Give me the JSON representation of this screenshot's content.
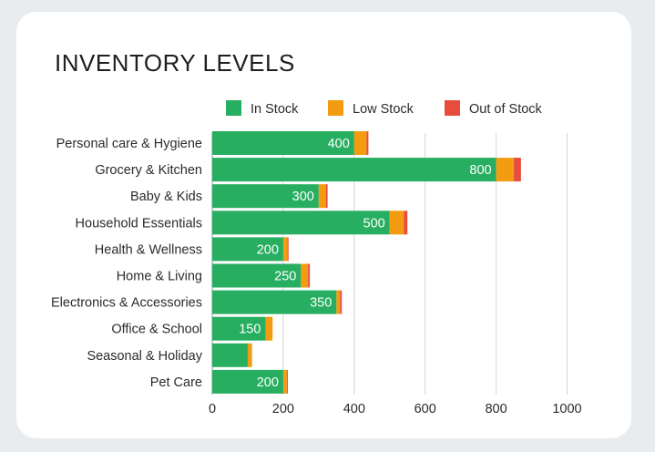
{
  "chart_data": {
    "type": "bar",
    "orientation": "horizontal",
    "stacked": true,
    "title": "INVENTORY LEVELS",
    "categories": [
      "Personal care & Hygiene",
      "Grocery & Kitchen",
      "Baby & Kids",
      "Household Essentials",
      "Health & Wellness",
      "Home & Living",
      "Electronics & Accessories",
      "Office & School",
      "Seasonal & Holiday",
      "Pet Care"
    ],
    "series": [
      {
        "name": "In Stock",
        "color": "#27ae60",
        "values": [
          400,
          800,
          300,
          500,
          200,
          250,
          350,
          150,
          100,
          200
        ],
        "labels": [
          "400",
          "800",
          "300",
          "500",
          "200",
          "250",
          "350",
          "150",
          "",
          "200"
        ]
      },
      {
        "name": "Low Stock",
        "color": "#f39c12",
        "values": [
          35,
          50,
          20,
          40,
          12,
          20,
          10,
          20,
          12,
          10
        ]
      },
      {
        "name": "Out of Stock",
        "color": "#e74c3c",
        "values": [
          5,
          20,
          5,
          10,
          3,
          5,
          5,
          0,
          0,
          3
        ]
      }
    ],
    "xlim": [
      0,
      1000
    ],
    "xticks": [
      "0",
      "200",
      "400",
      "600",
      "800",
      "1000"
    ],
    "grid": "vertical",
    "legend_position": "top"
  }
}
